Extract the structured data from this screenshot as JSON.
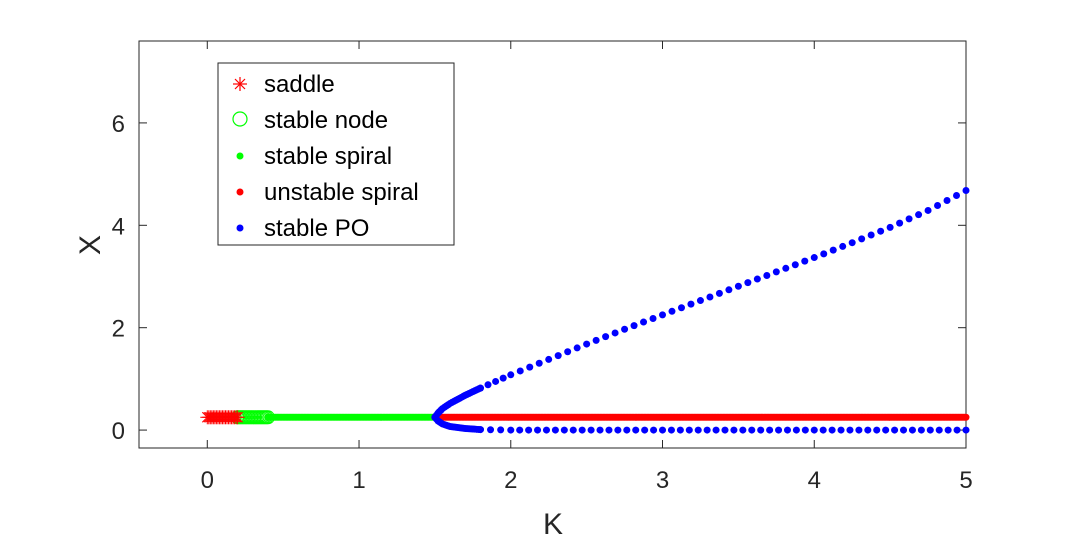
{
  "chart_data": {
    "type": "scatter",
    "title": "",
    "xlabel": "K",
    "ylabel": "X",
    "xlim": [
      -0.45,
      5
    ],
    "ylim": [
      -0.35,
      7.6
    ],
    "xticks": [
      0,
      1,
      2,
      3,
      4,
      5
    ],
    "yticks": [
      0,
      2,
      4,
      6
    ],
    "xtick_labels": [
      "0",
      "1",
      "2",
      "3",
      "4",
      "5"
    ],
    "ytick_labels": [
      "0",
      "2",
      "4",
      "6"
    ],
    "grid": false,
    "legend_position": "top-left",
    "series": [
      {
        "name": "saddle",
        "marker": "asterisk",
        "color": "#ff0000",
        "description_range": {
          "k_start": 0.0,
          "k_end": 0.2,
          "step": 0.01,
          "x": 0.25
        }
      },
      {
        "name": "stable node",
        "marker": "circle-open",
        "color": "#00ff00",
        "description_range": {
          "k_start": 0.2,
          "k_end": 0.4,
          "step": 0.01,
          "x": 0.25
        }
      },
      {
        "name": "stable spiral",
        "marker": "dot",
        "color": "#00ff00",
        "description_range": {
          "k_start": 0.4,
          "k_end": 1.5,
          "step": 0.01,
          "x": 0.25
        }
      },
      {
        "name": "unstable spiral",
        "marker": "dot",
        "color": "#ff0000",
        "description_range": {
          "k_start": 1.5,
          "k_end": 5.0,
          "step": 0.01,
          "x": 0.25
        }
      },
      {
        "name": "stable PO",
        "marker": "dot",
        "color": "#0000ff",
        "upper_branch": [
          [
            1.5,
            0.25
          ],
          [
            1.52,
            0.33
          ],
          [
            1.55,
            0.42
          ],
          [
            1.6,
            0.52
          ],
          [
            1.7,
            0.68
          ],
          [
            1.8,
            0.82
          ],
          [
            1.9,
            0.95
          ],
          [
            2.0,
            1.08
          ],
          [
            2.25,
            1.38
          ],
          [
            2.5,
            1.68
          ],
          [
            2.75,
            1.97
          ],
          [
            3.0,
            2.25
          ],
          [
            3.25,
            2.53
          ],
          [
            3.5,
            2.81
          ],
          [
            3.75,
            3.09
          ],
          [
            4.0,
            3.37
          ],
          [
            4.25,
            3.66
          ],
          [
            4.5,
            3.96
          ],
          [
            4.75,
            4.29
          ],
          [
            5.0,
            4.68
          ]
        ],
        "lower_branch": [
          [
            1.5,
            0.25
          ],
          [
            1.52,
            0.18
          ],
          [
            1.55,
            0.12
          ],
          [
            1.6,
            0.07
          ],
          [
            1.7,
            0.03
          ],
          [
            1.8,
            0.01
          ],
          [
            2.0,
            0.0
          ],
          [
            3.0,
            0.0
          ],
          [
            4.0,
            0.0
          ],
          [
            5.0,
            0.0
          ]
        ]
      }
    ]
  }
}
